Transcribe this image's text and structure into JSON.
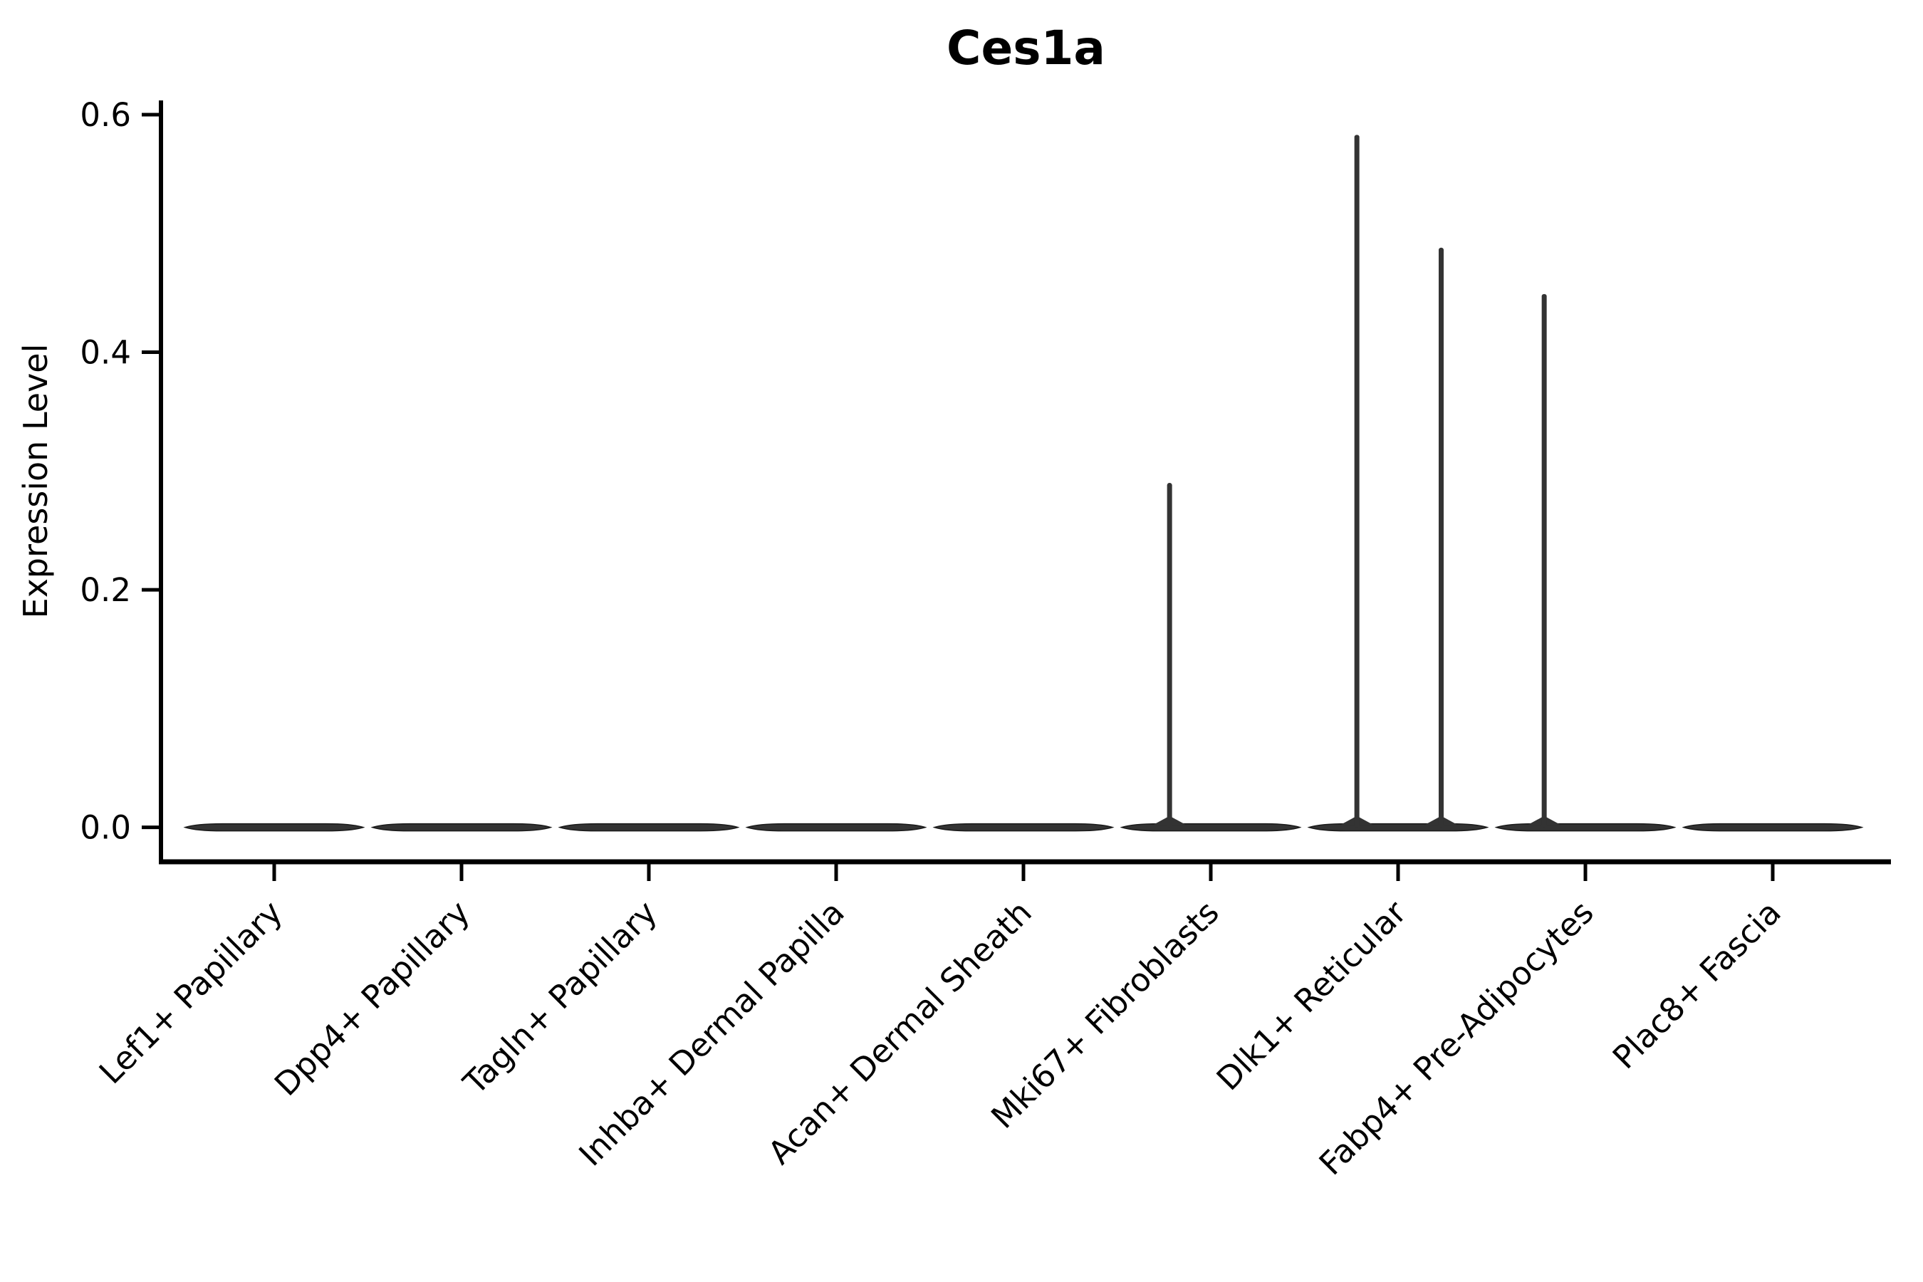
{
  "chart_data": {
    "type": "violin",
    "title": "Ces1a",
    "xlabel": "",
    "ylabel": "Expression Level",
    "grid": false,
    "legend": "none",
    "background_color": "#ffffff",
    "axis_color": "#000000",
    "violin_color": "#333333",
    "violin_edge_color": "#1a1a1a",
    "ylim": [
      -0.029,
      0.612
    ],
    "yticks": [
      0.0,
      0.2,
      0.4,
      0.6
    ],
    "ytick_labels": [
      "0.0",
      "0.2",
      "0.4",
      "0.6"
    ],
    "categories": [
      "Lef1+ Papillary",
      "Dpp4+ Papillary",
      "Tagln+ Papillary",
      "Inhba+ Dermal Papilla",
      "Acan+ Dermal Sheath",
      "Mki67+ Fibroblasts",
      "Dlk1+ Reticular",
      "Fabp4+ Pre-Adipocytes",
      "Plac8+ Fascia"
    ],
    "violins": [
      {
        "category": "Lef1+ Papillary",
        "max_expression": 0.0,
        "spikes": []
      },
      {
        "category": "Dpp4+ Papillary",
        "max_expression": 0.0,
        "spikes": []
      },
      {
        "category": "Tagln+ Papillary",
        "max_expression": 0.0,
        "spikes": []
      },
      {
        "category": "Inhba+ Dermal Papilla",
        "max_expression": 0.0,
        "spikes": []
      },
      {
        "category": "Acan+ Dermal Sheath",
        "max_expression": 0.0,
        "spikes": []
      },
      {
        "category": "Mki67+ Fibroblasts",
        "max_expression": 0.29,
        "spikes": [
          {
            "offset": -0.22,
            "value": 0.29
          }
        ]
      },
      {
        "category": "Dlk1+ Reticular",
        "max_expression": 0.58,
        "spikes": [
          {
            "offset": -0.22,
            "value": 0.583
          },
          {
            "offset": 0.23,
            "value": 0.488
          }
        ]
      },
      {
        "category": "Fabp4+ Pre-Adipocytes",
        "max_expression": 0.45,
        "spikes": [
          {
            "offset": -0.22,
            "value": 0.449
          }
        ]
      },
      {
        "category": "Plac8+ Fascia",
        "max_expression": 0.0,
        "spikes": []
      }
    ]
  }
}
